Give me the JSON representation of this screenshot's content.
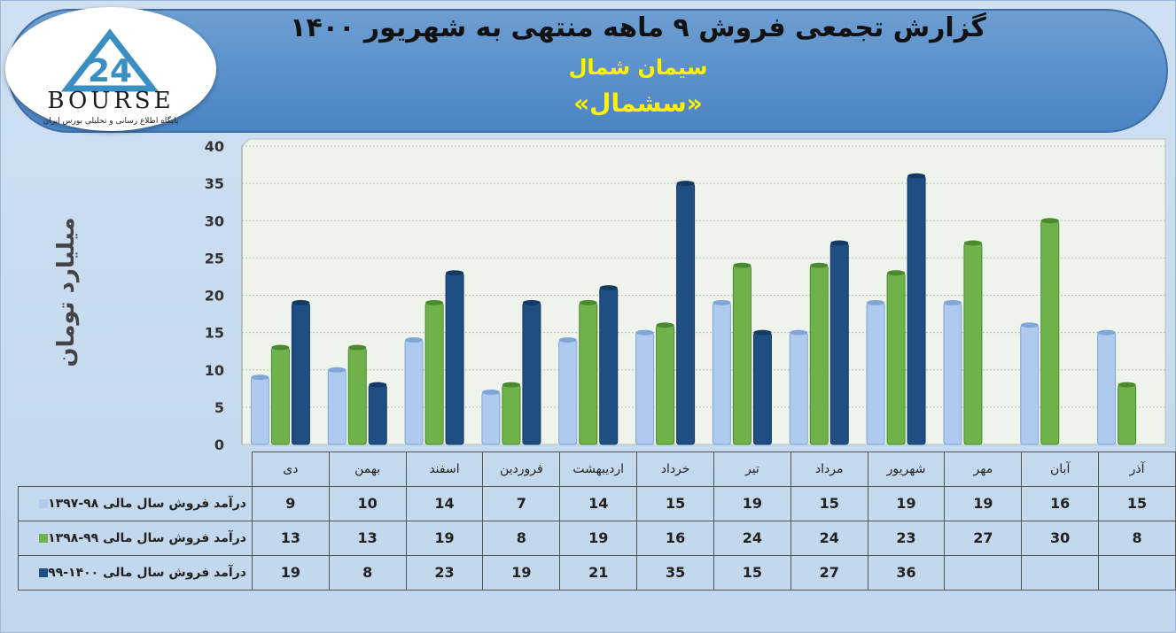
{
  "header": {
    "title": "گزارش تجمعی فروش ۹ ماهه منتهی به شهریور ۱۴۰۰",
    "subtitle": "سیمان شمال",
    "symbol": "«سشمال»",
    "logo_text": "BOURSE",
    "logo_caption": "پایگاه اطلاع رسانی و تحلیلی بورس ایران",
    "logo_number": "24"
  },
  "colors": {
    "series1": "#aecbef",
    "series2": "#6fb24a",
    "series3": "#1f4e82",
    "header_bg": "#5b93cf",
    "title_accent": "#fff200"
  },
  "chart_data": {
    "type": "bar",
    "ylabel": "میلیارد تومان",
    "ylim": [
      0,
      40
    ],
    "yticks": [
      0,
      5,
      10,
      15,
      20,
      25,
      30,
      35,
      40
    ],
    "grid": true,
    "categories": [
      "دی",
      "بهمن",
      "اسفند",
      "فروردین",
      "اردیبهشت",
      "خرداد",
      "تیر",
      "مرداد",
      "شهریور",
      "مهر",
      "آبان",
      "آذر"
    ],
    "series": [
      {
        "name": "درآمد فروش سال مالی ۹۸-۱۳۹۷",
        "values": [
          9,
          10,
          14,
          7,
          14,
          15,
          19,
          15,
          19,
          19,
          16,
          15
        ]
      },
      {
        "name": "درآمد فروش سال مالی ۹۹-۱۳۹۸",
        "values": [
          13,
          13,
          19,
          8,
          19,
          16,
          24,
          24,
          23,
          27,
          30,
          8
        ]
      },
      {
        "name": "درآمد فروش سال مالی ۱۴۰۰-۹۹",
        "values": [
          19,
          8,
          23,
          19,
          21,
          35,
          15,
          27,
          36,
          null,
          null,
          null
        ]
      }
    ]
  }
}
